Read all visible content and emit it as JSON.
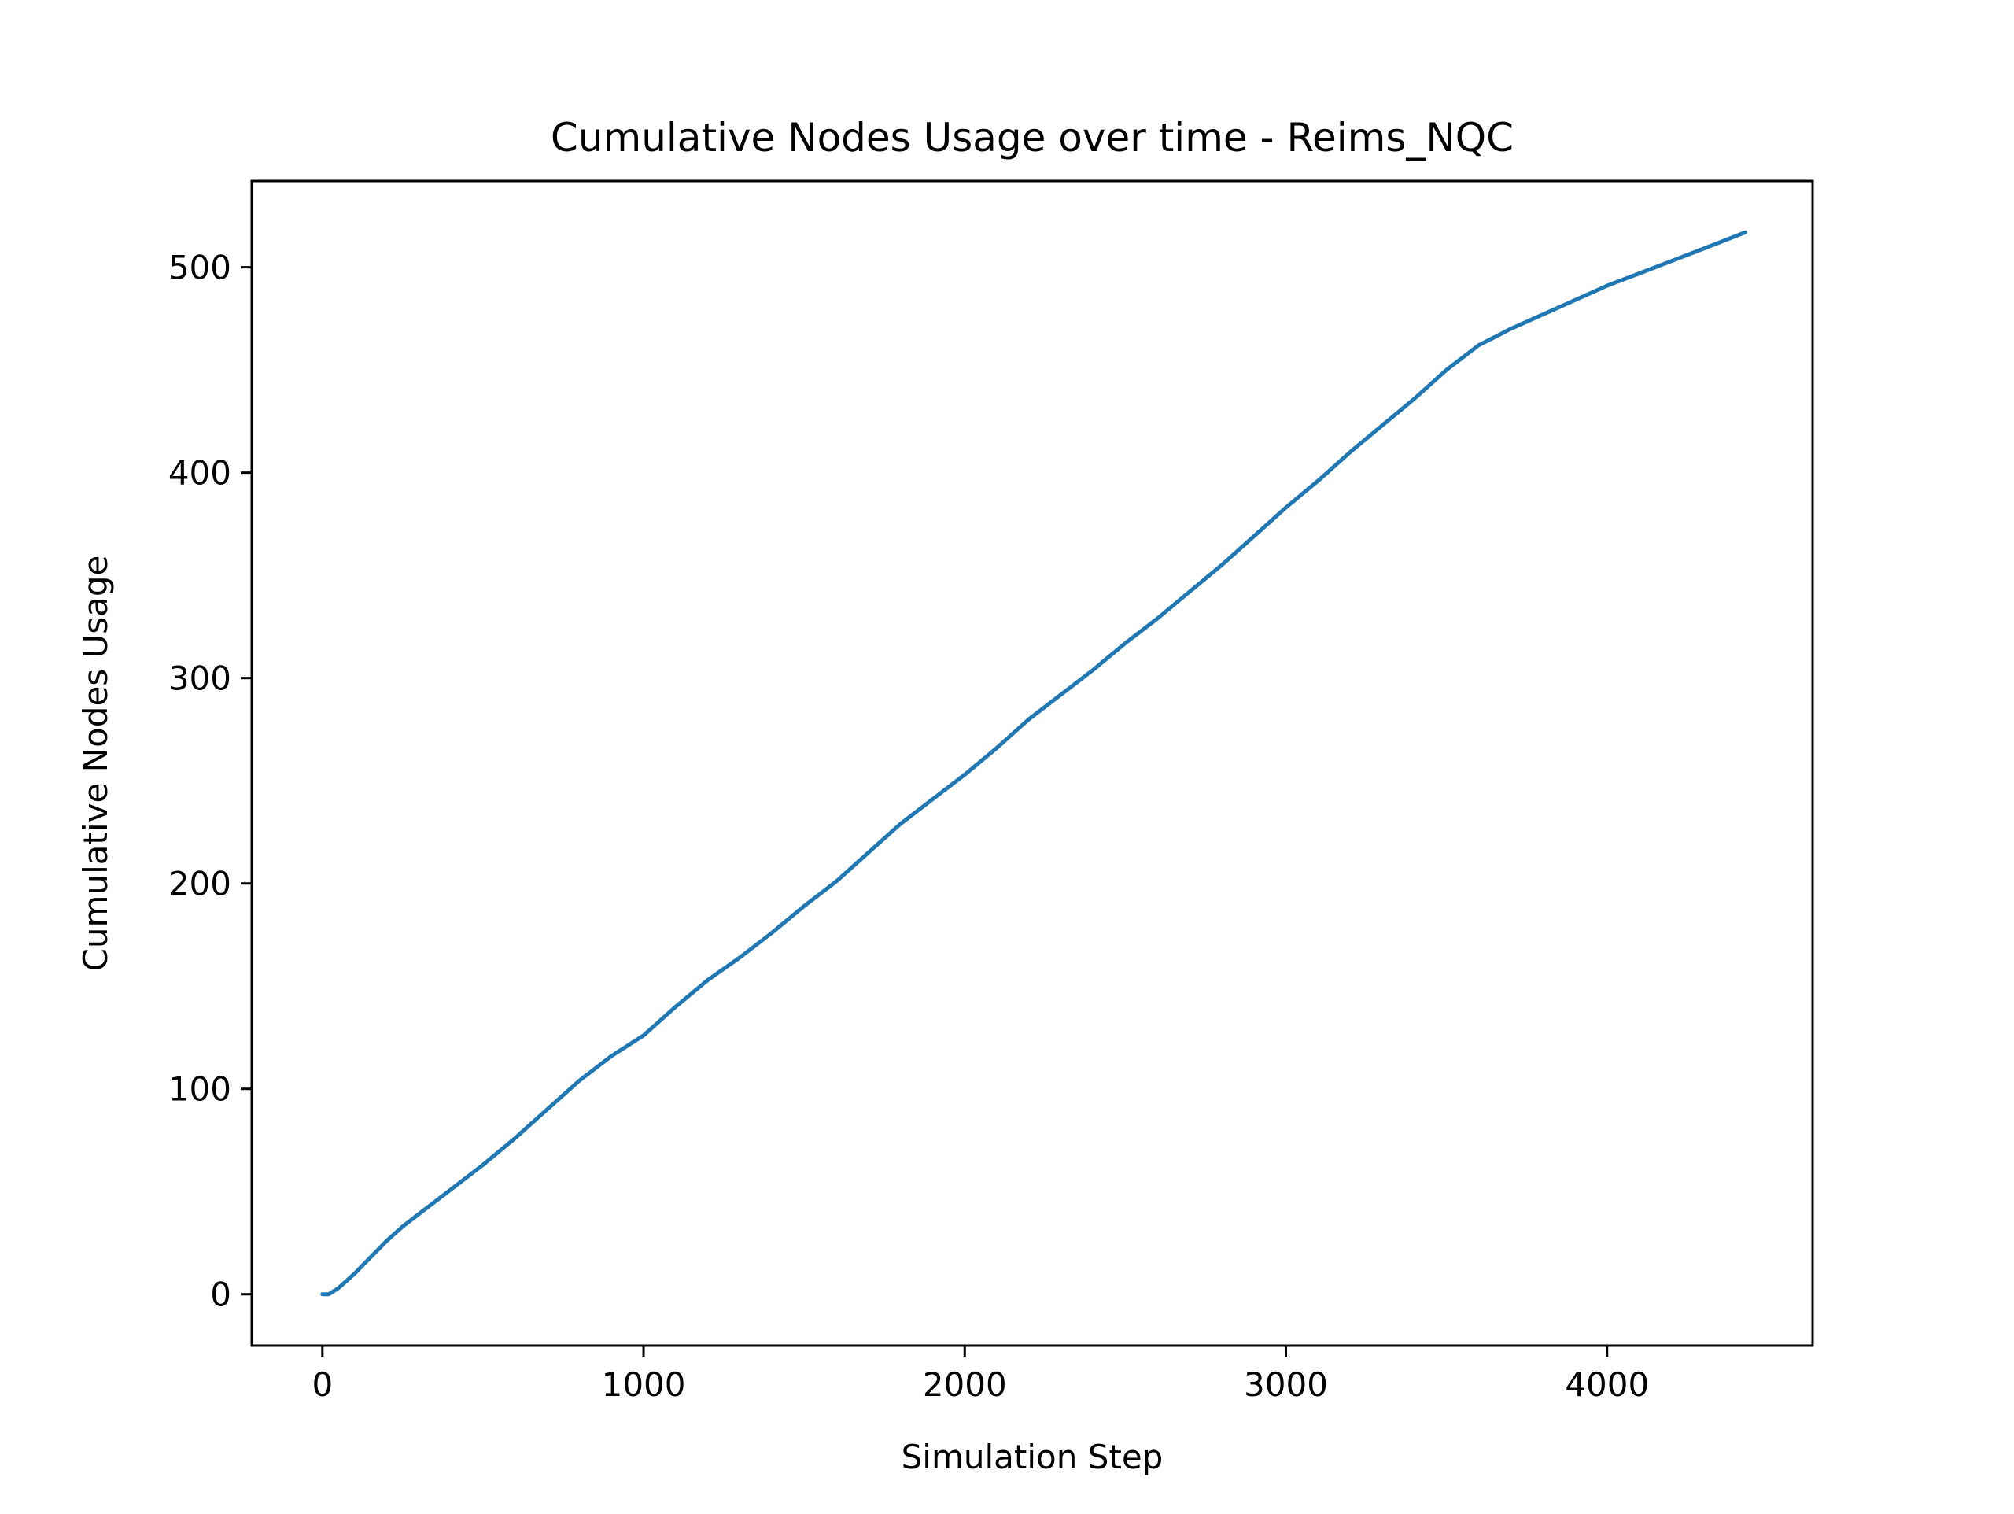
{
  "chart_data": {
    "type": "line",
    "title": "Cumulative Nodes Usage over time - Reims_NQC",
    "xlabel": "Simulation Step",
    "ylabel": "Cumulative Nodes Usage",
    "xlim": [
      -220,
      4640
    ],
    "ylim": [
      -25,
      542
    ],
    "xticks": [
      0,
      1000,
      2000,
      3000,
      4000
    ],
    "xtick_labels": [
      "0",
      "1000",
      "2000",
      "3000",
      "4000"
    ],
    "yticks": [
      0,
      100,
      200,
      300,
      400,
      500
    ],
    "ytick_labels": [
      "0",
      "100",
      "200",
      "300",
      "400",
      "500"
    ],
    "grid": false,
    "series": [
      {
        "color": "#1f77b4",
        "x": [
          0,
          20,
          50,
          100,
          150,
          200,
          250,
          300,
          400,
          500,
          600,
          700,
          800,
          900,
          1000,
          1100,
          1200,
          1300,
          1400,
          1500,
          1600,
          1700,
          1800,
          1900,
          2000,
          2100,
          2200,
          2300,
          2400,
          2500,
          2600,
          2700,
          2800,
          2900,
          3000,
          3100,
          3200,
          3300,
          3400,
          3500,
          3550,
          3600,
          3650,
          3700,
          3800,
          3900,
          4000,
          4100,
          4200,
          4300,
          4430
        ],
        "y": [
          0,
          0,
          3,
          10,
          18,
          26,
          33,
          39,
          51,
          63,
          76,
          90,
          104,
          116,
          126,
          140,
          153,
          164,
          176,
          189,
          201,
          215,
          229,
          241,
          253,
          266,
          280,
          292,
          304,
          317,
          329,
          342,
          355,
          369,
          383,
          396,
          410,
          423,
          436,
          450,
          456,
          462,
          466,
          470,
          477,
          484,
          491,
          497,
          503,
          509,
          517
        ]
      }
    ]
  }
}
